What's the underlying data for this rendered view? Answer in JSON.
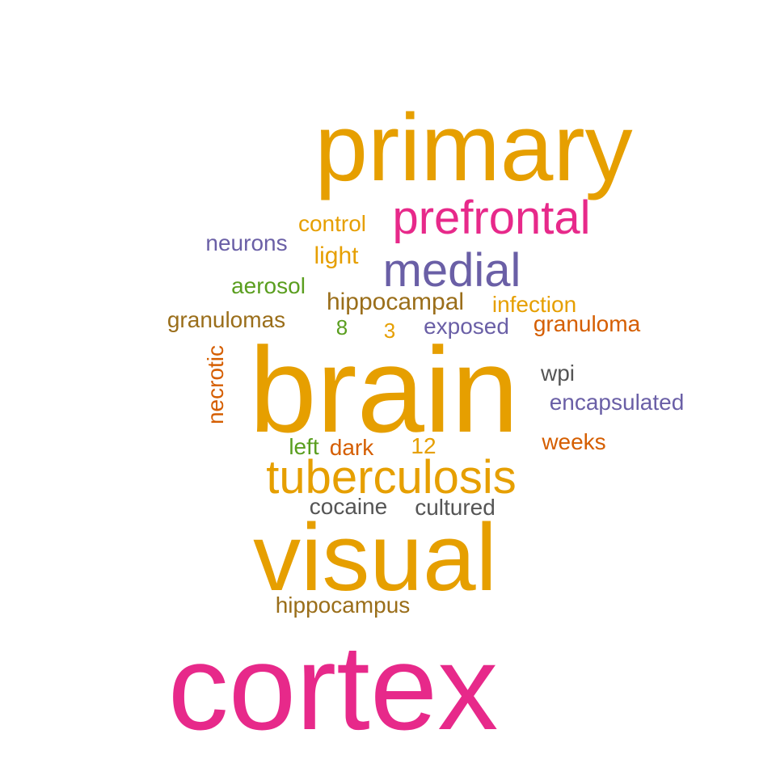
{
  "words": [
    {
      "text": "primary",
      "color": "#E69F00"
    },
    {
      "text": "prefrontal",
      "color": "#E7298A"
    },
    {
      "text": "control",
      "color": "#E69F00"
    },
    {
      "text": "neurons",
      "color": "#6A5FA6"
    },
    {
      "text": "light",
      "color": "#E69F00"
    },
    {
      "text": "medial",
      "color": "#6A5FA6"
    },
    {
      "text": "aerosol",
      "color": "#5A9E1F"
    },
    {
      "text": "hippocampal",
      "color": "#9A6E1A"
    },
    {
      "text": "infection",
      "color": "#E69F00"
    },
    {
      "text": "granulomas",
      "color": "#9A6E1A"
    },
    {
      "text": "8",
      "color": "#5A9E1F"
    },
    {
      "text": "3",
      "color": "#E69F00"
    },
    {
      "text": "exposed",
      "color": "#6A5FA6"
    },
    {
      "text": "granuloma",
      "color": "#D55E00"
    },
    {
      "text": "necrotic",
      "color": "#D55E00"
    },
    {
      "text": "brain",
      "color": "#E69F00"
    },
    {
      "text": "wpi",
      "color": "#555555"
    },
    {
      "text": "encapsulated",
      "color": "#6A5FA6"
    },
    {
      "text": "left",
      "color": "#5A9E1F"
    },
    {
      "text": "dark",
      "color": "#D55E00"
    },
    {
      "text": "12",
      "color": "#E69F00"
    },
    {
      "text": "weeks",
      "color": "#D55E00"
    },
    {
      "text": "tuberculosis",
      "color": "#E69F00"
    },
    {
      "text": "cocaine",
      "color": "#555555"
    },
    {
      "text": "cultured",
      "color": "#555555"
    },
    {
      "text": "visual",
      "color": "#E69F00"
    },
    {
      "text": "hippocampus",
      "color": "#9A6E1A"
    },
    {
      "text": "cortex",
      "color": "#E7298A"
    }
  ]
}
